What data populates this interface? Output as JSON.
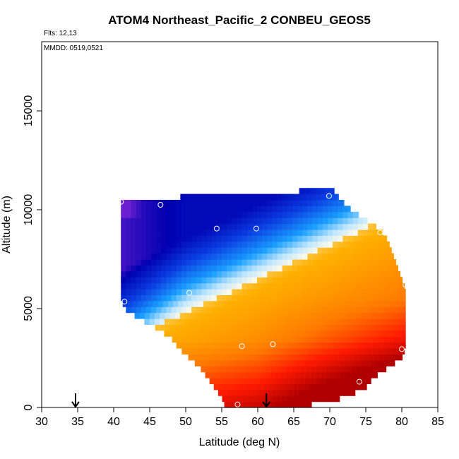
{
  "chart_data": {
    "type": "heatmap",
    "title": "ATOM4 Northeast_Pacific_2 CONBEU_GEOS5",
    "flights_note": "Flts: 12,13",
    "dates_note": "MMDD: 0519,0521",
    "xlabel": "Latitude (deg N)",
    "ylabel": "Altitude (m)",
    "xlim": [
      30,
      85
    ],
    "ylim": [
      0,
      18500
    ],
    "x_ticks": [
      "30",
      "35",
      "40",
      "45",
      "50",
      "55",
      "60",
      "65",
      "70",
      "75",
      "80",
      "85"
    ],
    "y_ticks": [
      "0",
      "5000",
      "10000",
      "15000"
    ],
    "x_tick_values": [
      30,
      35,
      40,
      45,
      50,
      55,
      60,
      65,
      70,
      75,
      80,
      85
    ],
    "y_tick_values": [
      0,
      5000,
      10000,
      15000
    ],
    "grid": false,
    "colors": {
      "purple": "#6a1fd0",
      "dark_blue": "#0000b0",
      "blue": "#0a3ae0",
      "light_blue": "#1aa0ff",
      "pale_blue": "#bfe6ff",
      "white": "#fffbe8",
      "orange": "#ffb000",
      "dark_orange": "#ff7a00",
      "red": "#ff1a00",
      "dark_red": "#b00000"
    },
    "field_summary": "high values (red) at low altitudes in the north, low values (blue) at high altitudes in the south",
    "observation_points": [
      {
        "lat": 41.0,
        "alt": 10400
      },
      {
        "lat": 46.5,
        "alt": 10250
      },
      {
        "lat": 54.3,
        "alt": 9050
      },
      {
        "lat": 59.8,
        "alt": 9050
      },
      {
        "lat": 69.9,
        "alt": 10700
      },
      {
        "lat": 77.0,
        "alt": 8850
      },
      {
        "lat": 41.5,
        "alt": 5350
      },
      {
        "lat": 50.5,
        "alt": 5800
      },
      {
        "lat": 80.5,
        "alt": 6200
      },
      {
        "lat": 57.8,
        "alt": 3100
      },
      {
        "lat": 62.1,
        "alt": 3200
      },
      {
        "lat": 80.0,
        "alt": 2950
      },
      {
        "lat": 74.1,
        "alt": 1300
      },
      {
        "lat": 57.2,
        "alt": 150
      }
    ],
    "flight_start_markers": [
      {
        "lat": 34.7
      },
      {
        "lat": 61.2
      }
    ]
  }
}
